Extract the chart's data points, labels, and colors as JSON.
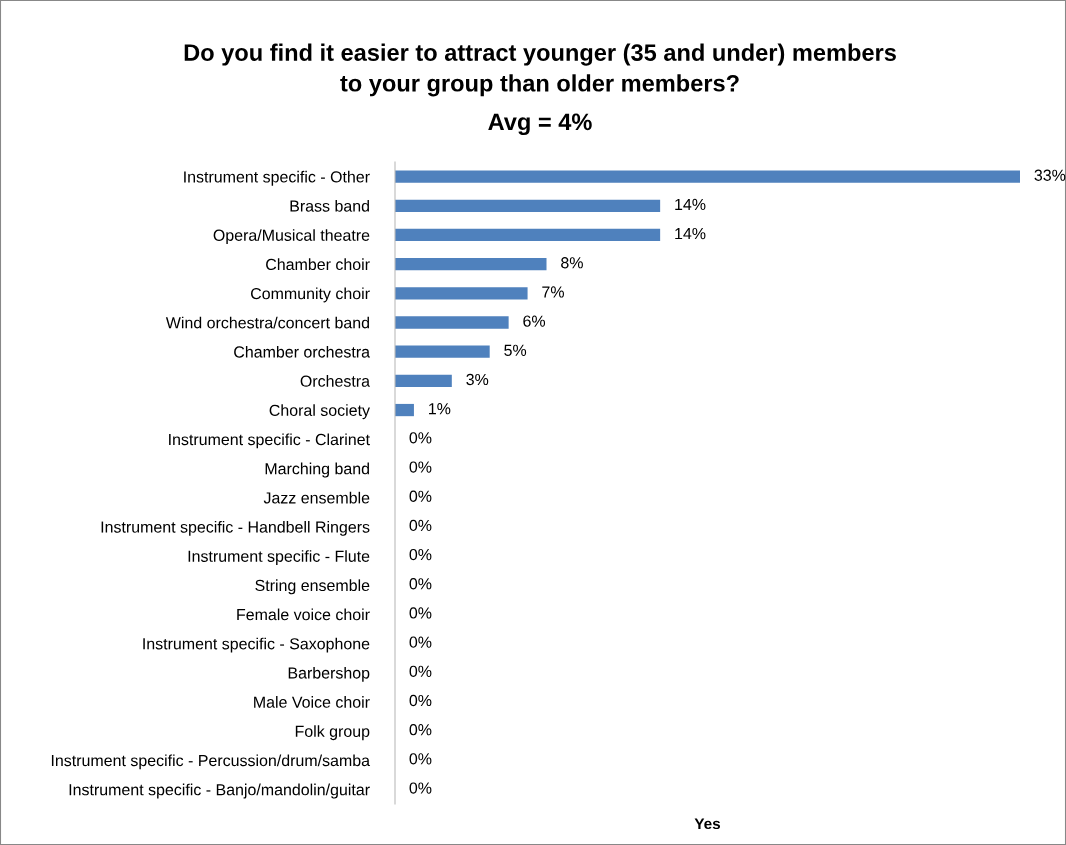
{
  "chart_data": {
    "type": "bar",
    "orientation": "horizontal",
    "title": "Do you find it easier to attract younger (35 and under) members\nto your group than older members?",
    "subtitle": "Avg = 4%",
    "xlabel": "Yes",
    "categories": [
      "Instrument specific - Other",
      "Brass band",
      "Opera/Musical theatre",
      "Chamber choir",
      "Community choir",
      "Wind orchestra/concert band",
      "Chamber orchestra",
      "Orchestra",
      "Choral society",
      "Instrument specific - Clarinet",
      "Marching band",
      "Jazz ensemble",
      "Instrument specific - Handbell Ringers",
      "Instrument specific - Flute",
      "String ensemble",
      "Female voice choir",
      "Instrument specific - Saxophone",
      "Barbershop",
      "Male Voice choir",
      "Folk group",
      "Instrument specific - Percussion/drum/samba",
      "Instrument specific - Banjo/mandolin/guitar"
    ],
    "values": [
      33,
      14,
      14,
      8,
      7,
      6,
      5,
      3,
      1,
      0,
      0,
      0,
      0,
      0,
      0,
      0,
      0,
      0,
      0,
      0,
      0,
      0
    ],
    "value_labels": [
      "33%",
      "14%",
      "14%",
      "8%",
      "7%",
      "6%",
      "5%",
      "3%",
      "1%",
      "0%",
      "0%",
      "0%",
      "0%",
      "0%",
      "0%",
      "0%",
      "0%",
      "0%",
      "0%",
      "0%",
      "0%",
      "0%"
    ],
    "color": "#4f81bd",
    "grid": false,
    "legend": false
  }
}
